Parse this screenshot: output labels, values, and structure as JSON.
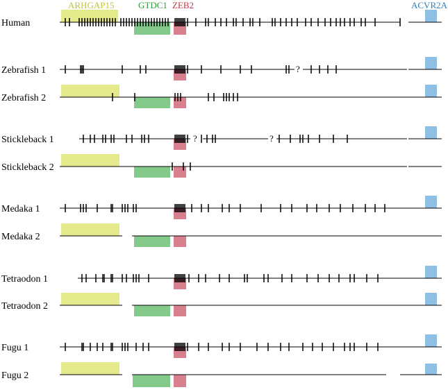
{
  "colors": {
    "ARHGAP15": "#e5ea8c",
    "GTDC1": "#82c98a",
    "ZEB2": "#d9808f",
    "ACVR2A": "#8fbfe3",
    "ARHGAP15_text": "#c2c43a",
    "GTDC1_text": "#2f9c3b",
    "ZEB2_text": "#c43646",
    "ACVR2A_text": "#2e7fbf",
    "line": "#000000"
  },
  "genes": [
    {
      "id": "ARHGAP15",
      "label": "ARHGAP15"
    },
    {
      "id": "GTDC1",
      "label": "GTDC1"
    },
    {
      "id": "ZEB2",
      "label": "ZEB2"
    },
    {
      "id": "ACVR2A",
      "label": "ACVR2A"
    }
  ],
  "species": [
    {
      "label": "Human",
      "genes": [
        "ARHGAP15",
        "GTDC1",
        "ZEB2",
        "ACVR2A"
      ],
      "unknown_marks": 0
    },
    {
      "label": "Zebrafish 1",
      "genes": [
        "ZEB2",
        "ACVR2A"
      ],
      "unknown_marks": 1
    },
    {
      "label": "Zebrafish 2",
      "genes": [
        "ARHGAP15",
        "GTDC1",
        "ZEB2",
        "ACVR2A"
      ],
      "unknown_marks": 0
    },
    {
      "label": "Stickleback 1",
      "genes": [
        "ZEB2",
        "ACVR2A"
      ],
      "unknown_marks": 2
    },
    {
      "label": "Stickleback 2",
      "genes": [
        "ARHGAP15",
        "GTDC1",
        "ZEB2"
      ],
      "unknown_marks": 0
    },
    {
      "label": "Medaka 1",
      "genes": [
        "ZEB2",
        "ACVR2A"
      ],
      "unknown_marks": 0
    },
    {
      "label": "Medaka 2",
      "genes": [
        "ARHGAP15",
        "GTDC1",
        "ZEB2"
      ],
      "unknown_marks": 0
    },
    {
      "label": "Tetraodon 1",
      "genes": [
        "ZEB2",
        "ACVR2A"
      ],
      "unknown_marks": 0
    },
    {
      "label": "Tetraodon 2",
      "genes": [
        "ARHGAP15",
        "GTDC1",
        "ZEB2",
        "ACVR2A"
      ],
      "unknown_marks": 0
    },
    {
      "label": "Fugu 1",
      "genes": [
        "ZEB2",
        "ACVR2A"
      ],
      "unknown_marks": 0
    },
    {
      "label": "Fugu 2",
      "genes": [
        "ARHGAP15",
        "GTDC1",
        "ZEB2",
        "ACVR2A"
      ],
      "unknown_marks": 0
    }
  ],
  "unknown_symbol": "?"
}
